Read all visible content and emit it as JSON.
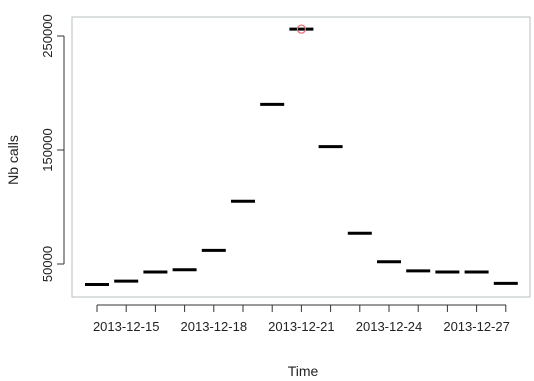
{
  "chart_data": {
    "type": "scatter",
    "title": "",
    "xlabel": "Time",
    "ylabel": "Nb calls",
    "x_tick_labels": [
      "2013-12-15",
      "2013-12-18",
      "2013-12-21",
      "2013-12-24",
      "2013-12-27"
    ],
    "y_tick_labels": [
      "50000",
      "150000",
      "250000"
    ],
    "y_ticks": [
      50000,
      150000,
      250000
    ],
    "ylim": [
      33000,
      264000
    ],
    "xlim": [
      "2013-12-13",
      "2013-12-31"
    ],
    "marker": "horizontal-dash",
    "marker_color": "#000000",
    "highlight_color": "#e8737a",
    "grid": false,
    "x": [
      "2013-12-14",
      "2013-12-15",
      "2013-12-16",
      "2013-12-17",
      "2013-12-18",
      "2013-12-19",
      "2013-12-20",
      "2013-12-21",
      "2013-12-22",
      "2013-12-23",
      "2013-12-24",
      "2013-12-25",
      "2013-12-26",
      "2013-12-27",
      "2013-12-28"
    ],
    "y": [
      32000,
      35000,
      43000,
      45000,
      62000,
      105000,
      190000,
      256000,
      153000,
      77000,
      52000,
      44000,
      43000,
      43000,
      33000
    ],
    "highlighted_point": {
      "x": "2013-12-21",
      "y": 256000
    }
  }
}
